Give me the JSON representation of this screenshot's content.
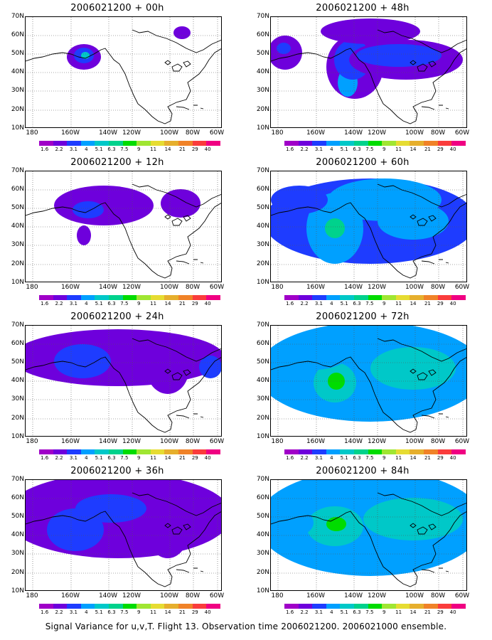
{
  "caption": "Signal Variance for u,v,T. Flight 13. Observation time 2006021200. 2006021000 ensemble.",
  "axes": {
    "lat_labels": [
      "70N",
      "60N",
      "50N",
      "40N",
      "30N",
      "20N",
      "10N"
    ],
    "lon_labels": [
      "180",
      "160W",
      "140W",
      "120W",
      "100W",
      "80W",
      "60W"
    ]
  },
  "colorbar": {
    "labels": [
      "1.6",
      "2.2",
      "3.1",
      "4",
      "5.1",
      "6.3",
      "7.5",
      "9",
      "11",
      "14",
      "21",
      "29",
      "40"
    ],
    "colors": [
      "#a000c8",
      "#6e00dc",
      "#1e3cff",
      "#00a0ff",
      "#00c8c8",
      "#00d28c",
      "#00dc00",
      "#a0e632",
      "#e6dc32",
      "#e6af2d",
      "#f08228",
      "#fa3c3c",
      "#f00082"
    ]
  },
  "panels": [
    {
      "title": "2006021200 + 00h",
      "intensity": 1
    },
    {
      "title": "2006021200 + 48h",
      "intensity": 4
    },
    {
      "title": "2006021200 + 12h",
      "intensity": 2
    },
    {
      "title": "2006021200 + 60h",
      "intensity": 5
    },
    {
      "title": "2006021200 + 24h",
      "intensity": 2
    },
    {
      "title": "2006021200 + 72h",
      "intensity": 6
    },
    {
      "title": "2006021200 + 36h",
      "intensity": 3
    },
    {
      "title": "2006021200 + 84h",
      "intensity": 6
    }
  ]
}
